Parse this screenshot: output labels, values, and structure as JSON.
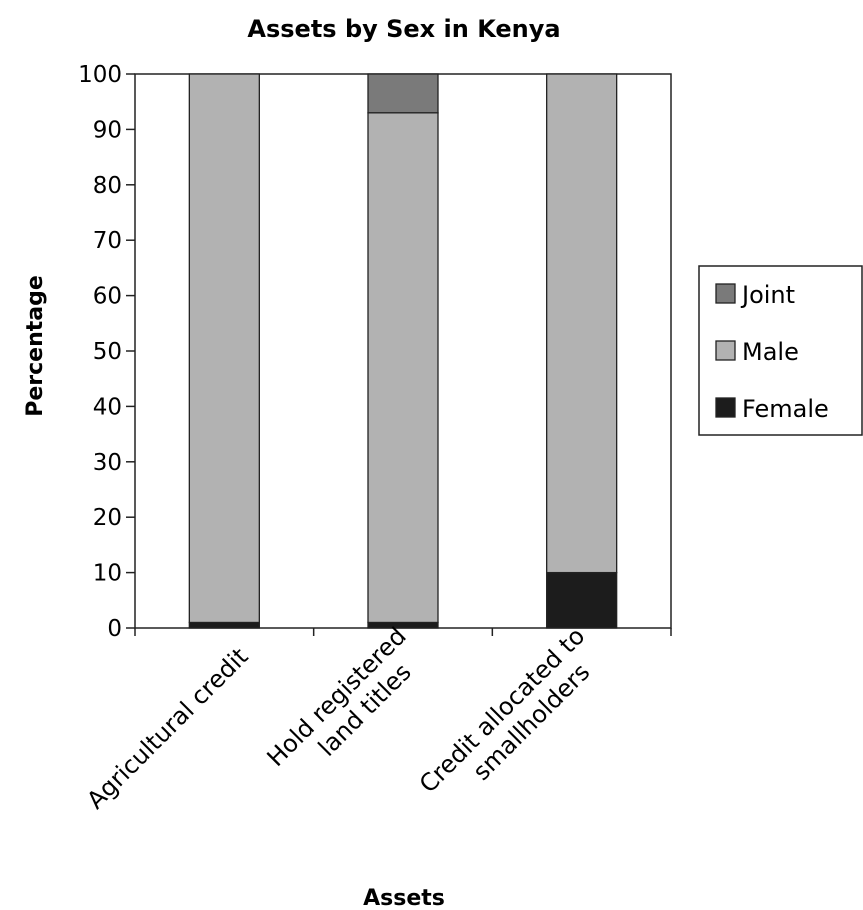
{
  "chart_data": {
    "type": "bar",
    "stacked": true,
    "title": "Assets by Sex in Kenya",
    "xlabel": "Assets",
    "ylabel": "Percentage",
    "ylim": [
      0,
      100
    ],
    "yticks": [
      0,
      10,
      20,
      30,
      40,
      50,
      60,
      70,
      80,
      90,
      100
    ],
    "categories": [
      [
        "Agricultural credit"
      ],
      [
        "Hold registered",
        "land titles"
      ],
      [
        "Credit allocated to",
        "smallholders"
      ]
    ],
    "series": [
      {
        "name": "Female",
        "values": [
          1,
          1,
          10
        ],
        "color": "#1c1c1c"
      },
      {
        "name": "Male",
        "values": [
          99,
          92,
          90
        ],
        "color": "#b2b2b2"
      },
      {
        "name": "Joint",
        "values": [
          0,
          7,
          0
        ],
        "color": "#7a7a7a"
      }
    ],
    "legend": {
      "position": "right",
      "order": [
        "Joint",
        "Male",
        "Female"
      ]
    },
    "grid": false
  }
}
